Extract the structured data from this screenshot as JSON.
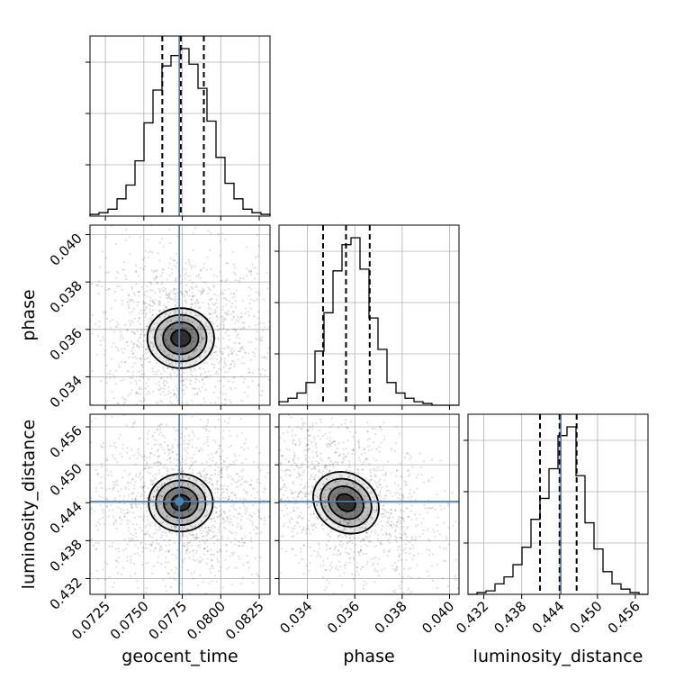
{
  "chart_data": {
    "type": "corner",
    "parameters": [
      {
        "name": "geocent_time",
        "label": "geocent_time",
        "range": [
          0.0715,
          0.0832
        ],
        "ticks": [
          "0.0725",
          "0.0750",
          "0.0775",
          "0.0800",
          "0.0825"
        ],
        "tick_values": [
          0.0725,
          0.075,
          0.0775,
          0.08,
          0.0825
        ],
        "truth": 0.0773,
        "quantiles": [
          0.0762,
          0.0774,
          0.0789
        ],
        "hist_edges_start": 0.0715,
        "hist_bin_width": 0.000585,
        "hist_counts": [
          0.01,
          0.02,
          0.04,
          0.1,
          0.18,
          0.32,
          0.54,
          0.73,
          0.87,
          0.93,
          0.97,
          0.88,
          0.74,
          0.55,
          0.34,
          0.19,
          0.1,
          0.04,
          0.02,
          0.01
        ]
      },
      {
        "name": "phase",
        "label": "phase",
        "range": [
          0.0328,
          0.0404
        ],
        "ticks": [
          "0.034",
          "0.036",
          "0.038",
          "0.040"
        ],
        "tick_values": [
          0.034,
          0.036,
          0.038,
          0.04
        ],
        "truth": null,
        "quantiles": [
          0.03466,
          0.03563,
          0.03663
        ],
        "hist_edges_start": 0.0328,
        "hist_bin_width": 0.00038,
        "hist_counts": [
          0.02,
          0.04,
          0.07,
          0.13,
          0.31,
          0.53,
          0.77,
          0.92,
          0.96,
          0.78,
          0.5,
          0.32,
          0.13,
          0.07,
          0.04,
          0.02,
          0.01,
          0.0,
          0.0,
          0.0
        ]
      },
      {
        "name": "luminosity_distance",
        "label": "luminosity_distance",
        "range": [
          0.4295,
          0.458
        ],
        "ticks": [
          "0.432",
          "0.438",
          "0.444",
          "0.450",
          "0.456"
        ],
        "tick_values": [
          0.432,
          0.438,
          0.444,
          0.45,
          0.456
        ],
        "truth": 0.4442,
        "quantiles": [
          0.4409,
          0.444,
          0.4467
        ],
        "hist_edges_start": 0.4295,
        "hist_bin_width": 0.001425,
        "hist_counts": [
          0.0,
          0.01,
          0.02,
          0.06,
          0.1,
          0.17,
          0.27,
          0.43,
          0.55,
          0.72,
          0.91,
          0.96,
          0.68,
          0.41,
          0.26,
          0.13,
          0.06,
          0.03,
          0.01,
          0.0
        ]
      }
    ],
    "grid": true,
    "truth_color": "#4682b4",
    "density_color": "#000000"
  }
}
